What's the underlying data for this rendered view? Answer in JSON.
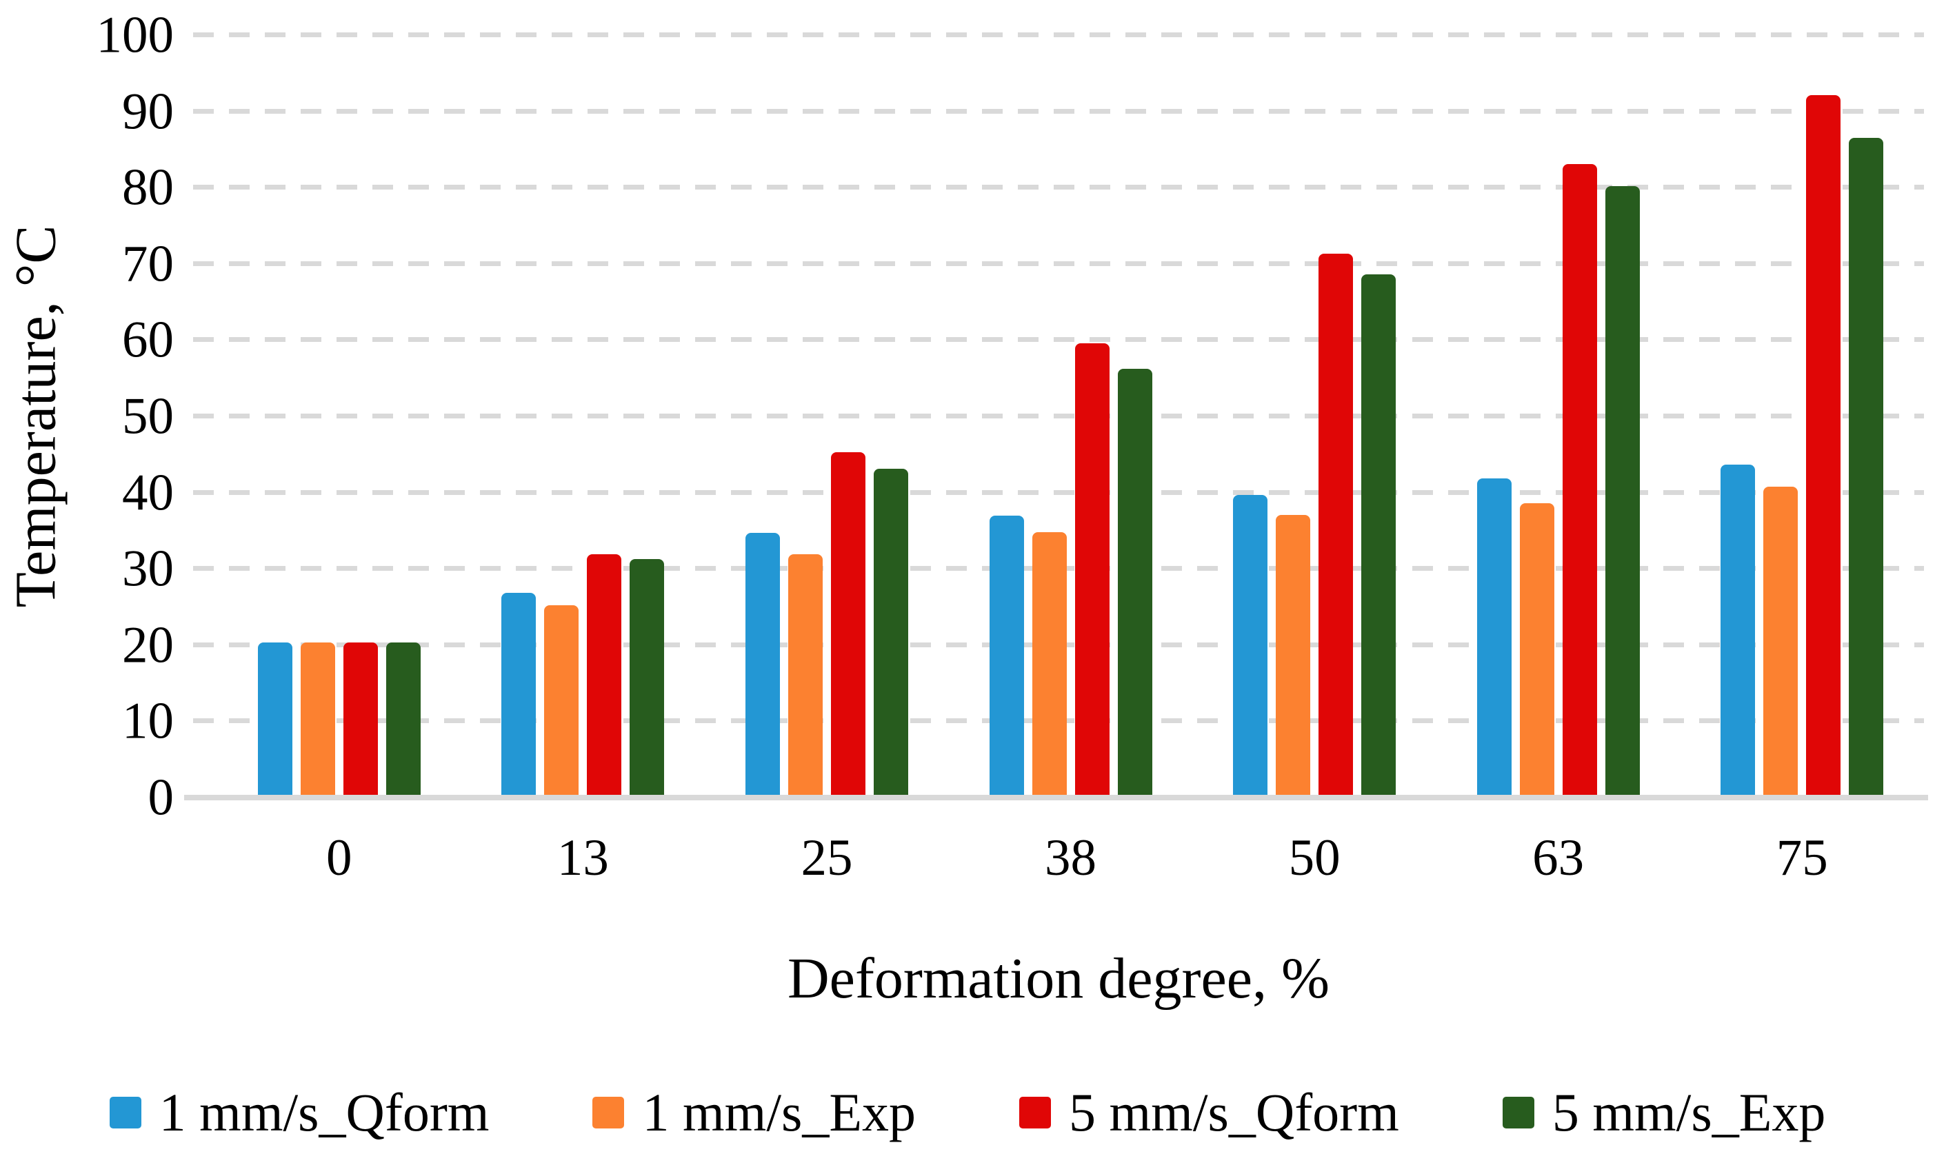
{
  "chart_data": {
    "type": "bar",
    "title": "",
    "xlabel": "Deformation degree, %",
    "ylabel": "Temperature, °C",
    "categories": [
      "0",
      "13",
      "25",
      "38",
      "50",
      "63",
      "75"
    ],
    "series": [
      {
        "name": "1 mm/s_Qform",
        "color": "#2397D4",
        "values": [
          20.3,
          26.9,
          34.7,
          37.0,
          39.7,
          41.9,
          43.7
        ]
      },
      {
        "name": "1 mm/s_Exp",
        "color": "#FC8130",
        "values": [
          20.3,
          25.2,
          31.9,
          34.8,
          37.1,
          38.6,
          40.8
        ]
      },
      {
        "name": "5 mm/s_Qform",
        "color": "#E00606",
        "values": [
          20.3,
          31.9,
          45.3,
          59.6,
          71.3,
          83.1,
          92.1
        ]
      },
      {
        "name": "5 mm/s_Exp",
        "color": "#275C1E",
        "values": [
          20.3,
          31.3,
          43.1,
          56.2,
          68.6,
          80.2,
          86.5
        ]
      }
    ],
    "ylim": [
      0,
      100
    ],
    "ytick_step": 10,
    "yticks": [
      "0",
      "10",
      "20",
      "30",
      "40",
      "50",
      "60",
      "70",
      "80",
      "90",
      "100"
    ],
    "grid": "horizontal-dashed",
    "gridline_color": "#D9D9D9",
    "axis_line_color": "#D9D9D9",
    "text_color": "#000000",
    "background": "#FFFFFF",
    "legend_position": "bottom"
  }
}
